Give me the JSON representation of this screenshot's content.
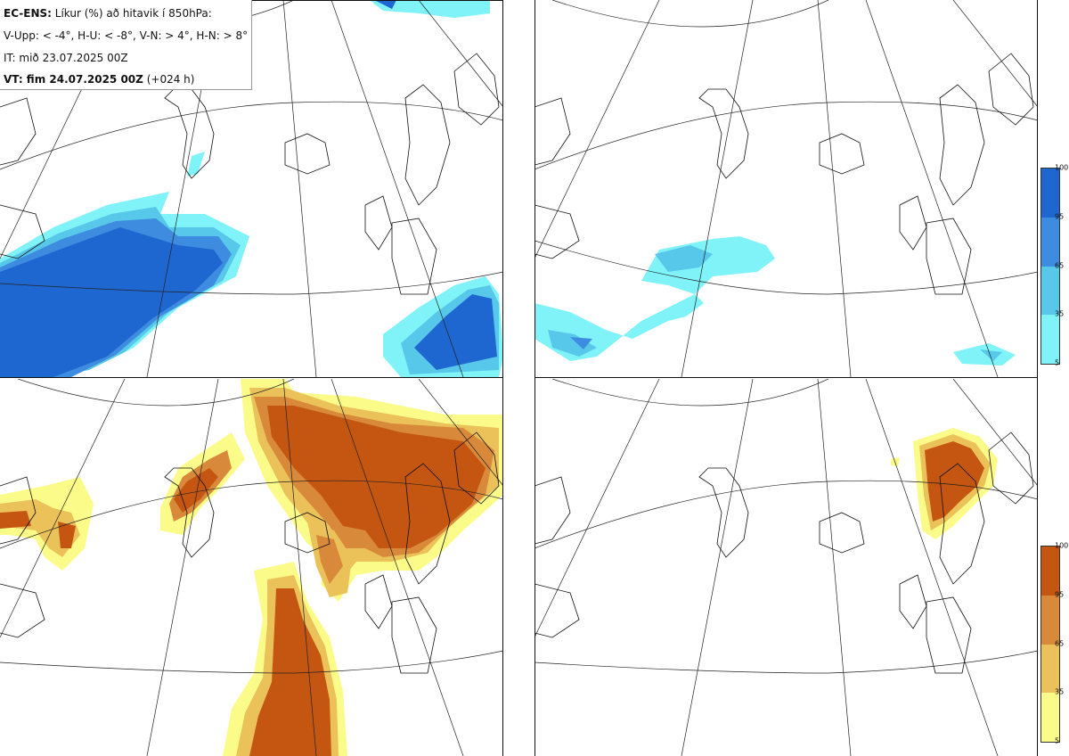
{
  "title_block": {
    "line1_bold": "EC-ENS:",
    "line1_rest": "Líkur (%) að hitavik í 850hPa:",
    "line2": "V-Upp: < -4°, H-U: < -8°, V-N: > 4°, H-N: > 8°",
    "line3": "IT: mið 23.07.2025 00Z",
    "line4_bold": "VT: fim 24.07.2025 00Z",
    "line4_rest": "(+024 h)"
  },
  "panels": [
    {
      "id": "V-Upp",
      "meaning": "cold anomaly < -4",
      "scheme": "blue"
    },
    {
      "id": "H-U",
      "meaning": "cold anomaly < -8",
      "scheme": "blue"
    },
    {
      "id": "V-N",
      "meaning": "warm anomaly > 4",
      "scheme": "brown"
    },
    {
      "id": "H-N",
      "meaning": "warm anomaly > 8",
      "scheme": "brown"
    }
  ],
  "colorbar": {
    "ticks": [
      "100",
      "95",
      "65",
      "35",
      "5"
    ],
    "cold_colors": [
      "#1f67d0",
      "#3d8ce0",
      "#57c7ea",
      "#80f3f8"
    ],
    "warm_colors": [
      "#c45611",
      "#d88a3a",
      "#ebc25a",
      "#fbfb8a"
    ]
  }
}
